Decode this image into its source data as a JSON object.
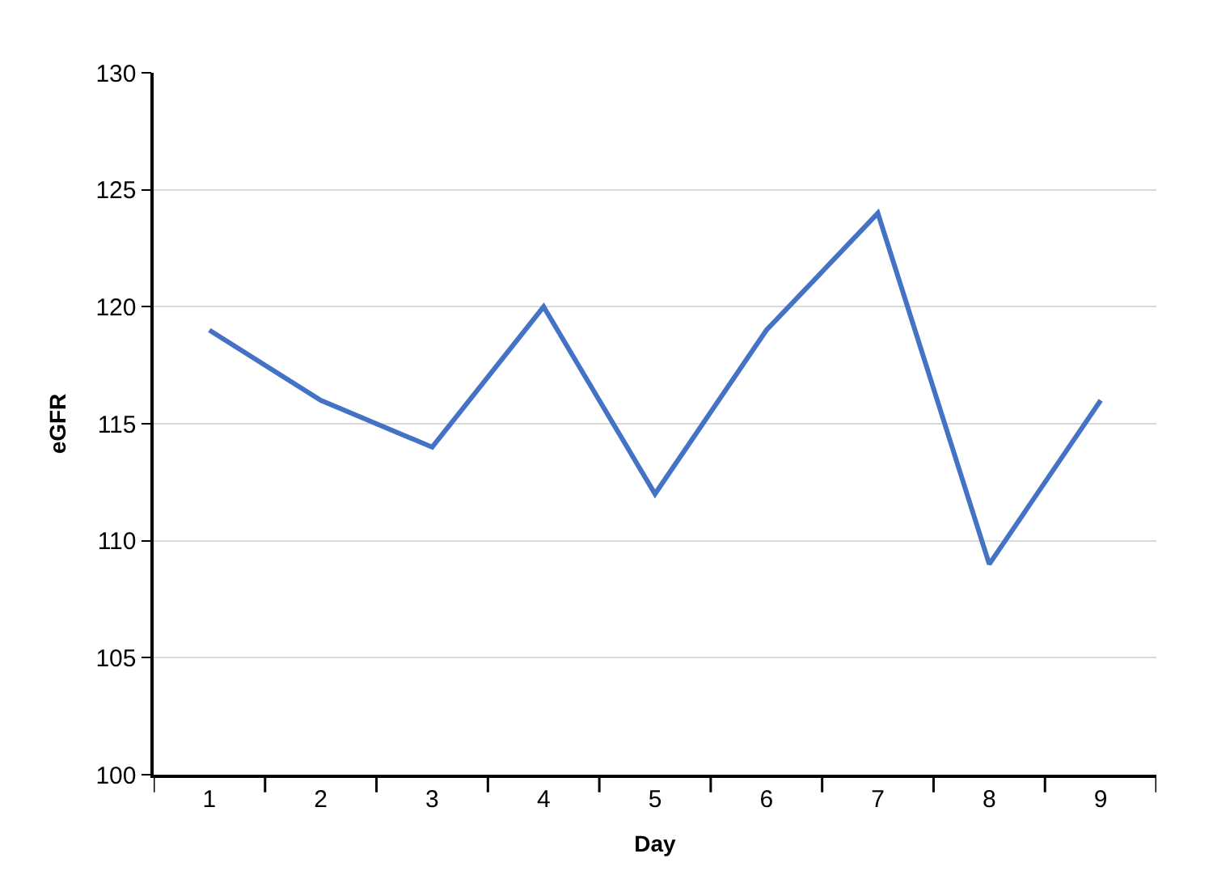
{
  "chart_data": {
    "type": "line",
    "xlabel": "Day",
    "ylabel": "eGFR",
    "categories": [
      "1",
      "2",
      "3",
      "4",
      "5",
      "6",
      "7",
      "8",
      "9"
    ],
    "series": [
      {
        "color": "#4472c4",
        "values": [
          119,
          116,
          114,
          120,
          112,
          119,
          124,
          109,
          116
        ]
      }
    ],
    "ylim": [
      100,
      130
    ],
    "yticks": [
      100,
      105,
      110,
      115,
      120,
      125,
      130
    ],
    "grid": "y",
    "marker": "none",
    "line_style": "solid"
  }
}
